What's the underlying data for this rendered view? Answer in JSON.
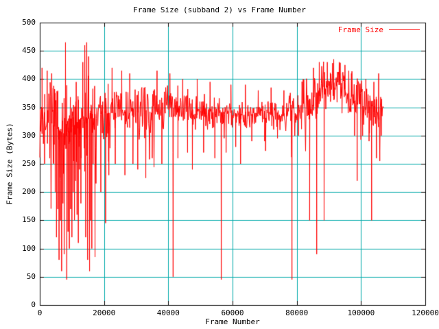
{
  "chart_data": {
    "type": "line",
    "title": "Frame Size (subband 2) vs Frame Number",
    "xlabel": "Frame Number",
    "ylabel": "Frame Size (Bytes)",
    "xlim": [
      0,
      120000
    ],
    "ylim": [
      0,
      500
    ],
    "xticks": [
      0,
      20000,
      40000,
      60000,
      80000,
      100000,
      120000
    ],
    "yticks": [
      0,
      50,
      100,
      150,
      200,
      250,
      300,
      350,
      400,
      450,
      500
    ],
    "grid": true,
    "grid_color": "#00aaaa",
    "border_color": "#000000",
    "series_color": "#ff0000",
    "legend": {
      "label": "Frame Size",
      "position": "top-right"
    },
    "x_data_max": 107000,
    "series": [
      {
        "name": "Frame Size",
        "color": "#ff0000",
        "envelope": [
          [
            0,
            330,
            55
          ],
          [
            3000,
            325,
            60
          ],
          [
            5000,
            315,
            70
          ],
          [
            8000,
            300,
            80
          ],
          [
            11000,
            320,
            60
          ],
          [
            13500,
            335,
            70
          ],
          [
            15000,
            330,
            90
          ],
          [
            17000,
            330,
            50
          ],
          [
            20000,
            340,
            45
          ],
          [
            25000,
            340,
            50
          ],
          [
            30000,
            340,
            40
          ],
          [
            35000,
            348,
            35
          ],
          [
            40000,
            350,
            35
          ],
          [
            45000,
            348,
            30
          ],
          [
            50000,
            344,
            30
          ],
          [
            55000,
            342,
            28
          ],
          [
            60000,
            340,
            25
          ],
          [
            65000,
            337,
            22
          ],
          [
            70000,
            340,
            22
          ],
          [
            75000,
            337,
            24
          ],
          [
            80000,
            348,
            30
          ],
          [
            84000,
            365,
            45
          ],
          [
            88000,
            385,
            40
          ],
          [
            92000,
            395,
            32
          ],
          [
            95000,
            382,
            38
          ],
          [
            98000,
            362,
            40
          ],
          [
            101000,
            350,
            35
          ],
          [
            104000,
            352,
            38
          ],
          [
            107000,
            350,
            25
          ]
        ],
        "spikes": [
          [
            700,
            420
          ],
          [
            1500,
            250
          ],
          [
            2300,
            415
          ],
          [
            3100,
            260
          ],
          [
            3700,
            410
          ],
          [
            4300,
            250
          ],
          [
            4800,
            200
          ],
          [
            5200,
            120
          ],
          [
            5600,
            170
          ],
          [
            6000,
            80
          ],
          [
            6400,
            150
          ],
          [
            6800,
            60
          ],
          [
            7200,
            180
          ],
          [
            7600,
            90
          ],
          [
            8000,
            465
          ],
          [
            8200,
            300
          ],
          [
            8400,
            45
          ],
          [
            8800,
            130
          ],
          [
            9200,
            100
          ],
          [
            9600,
            170
          ],
          [
            10000,
            120
          ],
          [
            10400,
            200
          ],
          [
            10800,
            150
          ],
          [
            11200,
            220
          ],
          [
            11600,
            160
          ],
          [
            12000,
            110
          ],
          [
            12400,
            240
          ],
          [
            12800,
            180
          ],
          [
            13400,
            430
          ],
          [
            14000,
            460
          ],
          [
            14300,
            120
          ],
          [
            14600,
            465
          ],
          [
            14900,
            80
          ],
          [
            15200,
            440
          ],
          [
            15500,
            60
          ],
          [
            15800,
            150
          ],
          [
            16200,
            100
          ],
          [
            16600,
            250
          ],
          [
            17200,
            85
          ],
          [
            19000,
            200
          ],
          [
            20500,
            145
          ],
          [
            21500,
            230
          ],
          [
            22500,
            420
          ],
          [
            23500,
            250
          ],
          [
            25500,
            415
          ],
          [
            26500,
            230
          ],
          [
            28000,
            410
          ],
          [
            29000,
            250
          ],
          [
            30500,
            240
          ],
          [
            33000,
            225
          ],
          [
            35000,
            260
          ],
          [
            36500,
            415
          ],
          [
            38000,
            250
          ],
          [
            40500,
            410
          ],
          [
            41500,
            50
          ],
          [
            43000,
            260
          ],
          [
            44500,
            400
          ],
          [
            46000,
            270
          ],
          [
            47500,
            240
          ],
          [
            49000,
            400
          ],
          [
            51000,
            270
          ],
          [
            53000,
            395
          ],
          [
            54500,
            260
          ],
          [
            56500,
            45
          ],
          [
            58000,
            270
          ],
          [
            59500,
            390
          ],
          [
            61000,
            280
          ],
          [
            62500,
            250
          ],
          [
            64000,
            390
          ],
          [
            66000,
            290
          ],
          [
            68000,
            380
          ],
          [
            70000,
            290
          ],
          [
            72000,
            385
          ],
          [
            74000,
            295
          ],
          [
            76000,
            380
          ],
          [
            78500,
            45
          ],
          [
            80500,
            300
          ],
          [
            82000,
            400
          ],
          [
            84000,
            150
          ],
          [
            85200,
            420
          ],
          [
            86200,
            90
          ],
          [
            87000,
            430
          ],
          [
            88500,
            150
          ],
          [
            89500,
            430
          ],
          [
            90500,
            360
          ],
          [
            91500,
            435
          ],
          [
            92500,
            380
          ],
          [
            93200,
            430
          ],
          [
            94000,
            370
          ],
          [
            95000,
            425
          ],
          [
            96000,
            340
          ],
          [
            97000,
            410
          ],
          [
            98000,
            300
          ],
          [
            98800,
            220
          ],
          [
            99600,
            390
          ],
          [
            100500,
            300
          ],
          [
            101500,
            400
          ],
          [
            102500,
            290
          ],
          [
            103300,
            150
          ],
          [
            104000,
            395
          ],
          [
            104800,
            260
          ],
          [
            105500,
            410
          ],
          [
            106300,
            300
          ],
          [
            107000,
            350
          ]
        ]
      }
    ]
  }
}
